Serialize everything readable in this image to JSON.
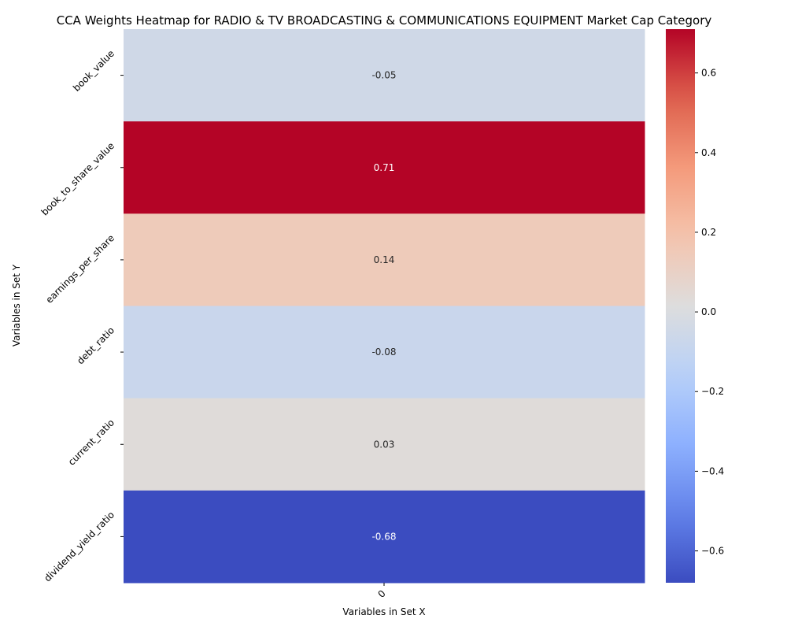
{
  "chart_data": {
    "type": "heatmap",
    "title": "CCA Weights Heatmap for RADIO & TV BROADCASTING & COMMUNICATIONS EQUIPMENT Market Cap Category",
    "xlabel": "Variables in Set X",
    "ylabel": "Variables in Set Y",
    "x_categories": [
      "0"
    ],
    "y_categories": [
      "book_value",
      "book_to_share_value",
      "earnings_per_share",
      "debt_ratio",
      "current_ratio",
      "dividend_yield_ratio"
    ],
    "values": [
      [
        -0.05
      ],
      [
        0.71
      ],
      [
        0.14
      ],
      [
        -0.08
      ],
      [
        0.03
      ],
      [
        -0.68
      ]
    ],
    "value_labels": [
      [
        "-0.05"
      ],
      [
        "0.71"
      ],
      [
        "0.14"
      ],
      [
        "-0.08"
      ],
      [
        "0.03"
      ],
      [
        "-0.68"
      ]
    ],
    "colormap": "coolwarm",
    "vmin": -0.68,
    "vmax": 0.71,
    "colorbar": {
      "ticks": [
        -0.6,
        -0.4,
        -0.2,
        0.0,
        0.2,
        0.4,
        0.6
      ],
      "tick_labels": [
        "−0.6",
        "−0.4",
        "−0.2",
        "0.0",
        "0.2",
        "0.4",
        "0.6"
      ]
    }
  }
}
